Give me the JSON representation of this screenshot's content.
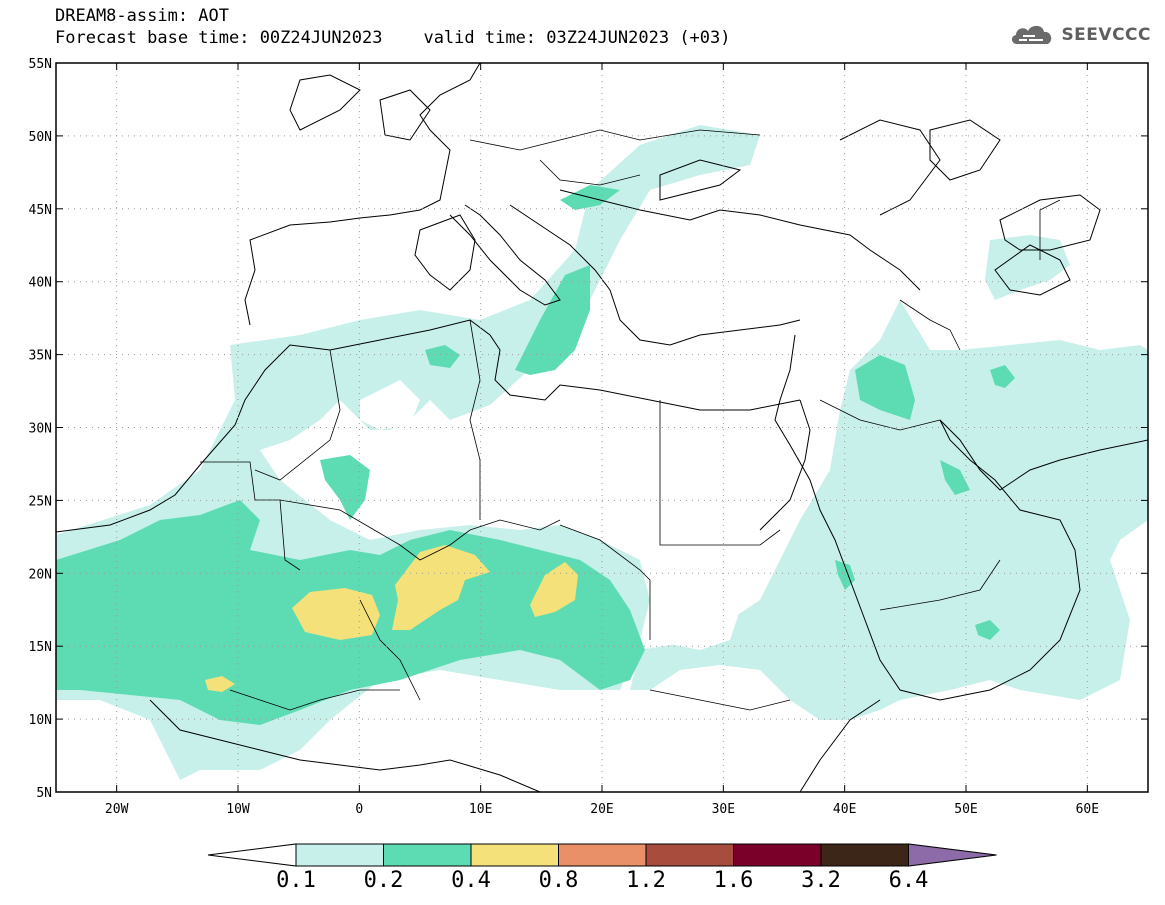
{
  "header": {
    "line1": "DREAM8-assim: AOT",
    "line2": "Forecast base time: 00Z24JUN2023    valid time: 03Z24JUN2023 (+03)",
    "logo_text": "SEEVCCC",
    "logo_icon": "cloud-icon"
  },
  "map": {
    "lon_range": [
      -25,
      65
    ],
    "lat_range": [
      5,
      55
    ],
    "lat_ticks": [
      "55N",
      "50N",
      "45N",
      "40N",
      "35N",
      "30N",
      "25N",
      "20N",
      "15N",
      "10N",
      "5N"
    ],
    "lon_ticks": [
      "20W",
      "10W",
      "0",
      "10E",
      "20E",
      "30E",
      "40E",
      "50E",
      "60E"
    ],
    "grid": "dotted"
  },
  "colorbar": {
    "labels": [
      "0.1",
      "0.2",
      "0.4",
      "0.8",
      "1.2",
      "1.6",
      "3.2",
      "6.4"
    ],
    "colors": [
      "#c7f0ea",
      "#5ddcb4",
      "#f5e17a",
      "#e99069",
      "#a84d3d",
      "#7a0029",
      "#3c2618",
      "#8d6aa8"
    ],
    "under_color": "#ffffff"
  }
}
